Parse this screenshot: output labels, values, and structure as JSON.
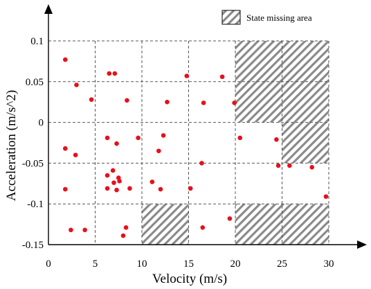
{
  "chart_data": {
    "type": "scatter",
    "xlabel": "Velocity (m/s)",
    "ylabel": "Acceleration (m/s^2)",
    "xlim": [
      0,
      30
    ],
    "ylim": [
      -0.15,
      0.1
    ],
    "x_ticks": [
      0,
      5,
      10,
      15,
      20,
      25,
      30
    ],
    "y_ticks": [
      -0.15,
      -0.1,
      -0.05,
      0,
      0.05,
      0.1
    ],
    "grid_x": [
      5,
      10,
      15,
      20,
      25,
      30
    ],
    "grid_y": [
      -0.1,
      -0.05,
      0,
      0.05,
      0.1
    ],
    "grid": "dashed",
    "point_color": "#e8101a",
    "legend": {
      "label": "State missing area",
      "position": "top-right"
    },
    "missing_areas": [
      {
        "x": [
          20,
          30
        ],
        "y": [
          0,
          0.1
        ]
      },
      {
        "x": [
          25,
          30
        ],
        "y": [
          -0.05,
          0
        ]
      },
      {
        "x": [
          10,
          15
        ],
        "y": [
          -0.15,
          -0.1
        ]
      },
      {
        "x": [
          20,
          30
        ],
        "y": [
          -0.15,
          -0.1
        ]
      }
    ],
    "points": [
      [
        1.8,
        0.077
      ],
      [
        3.0,
        0.046
      ],
      [
        4.6,
        0.028
      ],
      [
        6.5,
        0.06
      ],
      [
        7.1,
        0.06
      ],
      [
        8.4,
        0.027
      ],
      [
        12.7,
        0.025
      ],
      [
        14.8,
        0.057
      ],
      [
        16.6,
        0.024
      ],
      [
        18.6,
        0.056
      ],
      [
        19.9,
        0.024
      ],
      [
        1.8,
        -0.032
      ],
      [
        2.9,
        -0.04
      ],
      [
        6.3,
        -0.019
      ],
      [
        7.3,
        -0.026
      ],
      [
        9.6,
        -0.019
      ],
      [
        11.8,
        -0.035
      ],
      [
        12.3,
        -0.016
      ],
      [
        20.5,
        -0.019
      ],
      [
        24.4,
        -0.021
      ],
      [
        6.3,
        -0.065
      ],
      [
        6.9,
        -0.059
      ],
      [
        7.0,
        -0.074
      ],
      [
        7.5,
        -0.068
      ],
      [
        7.6,
        -0.072
      ],
      [
        16.4,
        -0.05
      ],
      [
        1.8,
        -0.082
      ],
      [
        6.3,
        -0.081
      ],
      [
        7.3,
        -0.083
      ],
      [
        8.7,
        -0.081
      ],
      [
        11.1,
        -0.073
      ],
      [
        12.0,
        -0.082
      ],
      [
        15.2,
        -0.081
      ],
      [
        24.6,
        -0.053
      ],
      [
        25.8,
        -0.053
      ],
      [
        28.2,
        -0.055
      ],
      [
        29.7,
        -0.091
      ],
      [
        2.4,
        -0.132
      ],
      [
        3.9,
        -0.132
      ],
      [
        8.3,
        -0.129
      ],
      [
        8.0,
        -0.139
      ],
      [
        16.5,
        -0.129
      ],
      [
        19.4,
        -0.118
      ]
    ]
  }
}
